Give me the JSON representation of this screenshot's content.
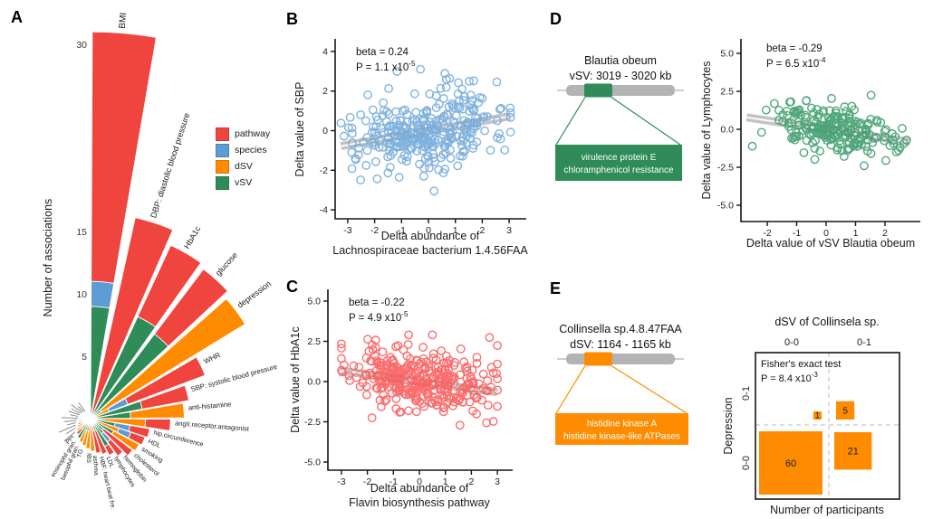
{
  "figure": {
    "panel_labels": {
      "a": "A",
      "b": "B",
      "c": "C",
      "d": "D",
      "e": "E"
    },
    "colors": {
      "pathway": "#F0453F",
      "species": "#5C9BD4",
      "dSV": "#FF8C00",
      "vSV": "#2F8B58",
      "scatter_b_point": "#74AADB",
      "scatter_c_point": "#FA5E5E",
      "scatter_d_point": "#3F9E6E",
      "trend_band": "#B9B9B9",
      "trend_line": "#FFFFFF",
      "axis": "#141414",
      "dashed_grid": "#C9C9C9"
    }
  },
  "chart_data": [
    {
      "id": "A",
      "type": "bar",
      "subtype": "polar-fan-stacked",
      "ylabel": "Number of associations",
      "radial_ticks": [
        [
          5,
          "5"
        ],
        [
          10,
          "10"
        ],
        [
          15,
          "15"
        ],
        [
          30,
          "30"
        ]
      ],
      "legend": {
        "position": "right",
        "entries": [
          {
            "label": "pathway",
            "color": "#F0453F"
          },
          {
            "label": "species",
            "color": "#5C9BD4"
          },
          {
            "label": "dSV",
            "color": "#FF8C00"
          },
          {
            "label": "vSV",
            "color": "#2F8B58"
          }
        ]
      },
      "bars": [
        {
          "label": "BMI",
          "segments": [
            [
              "vSV",
              9
            ],
            [
              "species",
              2
            ],
            [
              "pathway",
              20
            ]
          ]
        },
        {
          "label": "DBP: diastolic blood pressure",
          "segments": [
            [
              "pathway",
              16.5
            ]
          ]
        },
        {
          "label": "HbA1c",
          "segments": [
            [
              "vSV",
              9
            ],
            [
              "pathway",
              6.3
            ]
          ]
        },
        {
          "label": "glucose",
          "segments": [
            [
              "vSV",
              8.5
            ],
            [
              "pathway",
              6.5
            ]
          ]
        },
        {
          "label": "depression",
          "segments": [
            [
              "vSV",
              1
            ],
            [
              "dSV",
              13.5
            ]
          ]
        },
        {
          "label": "WHR",
          "segments": [
            [
              "dSV",
              1.6
            ],
            [
              "species",
              1.6
            ],
            [
              "pathway",
              6.6
            ]
          ]
        },
        {
          "label": "SBP: systolic blood pressure",
          "segments": [
            [
              "vSV",
              4.2
            ],
            [
              "pathway",
              3.8
            ]
          ]
        },
        {
          "label": "anti-histamine",
          "segments": [
            [
              "vSV",
              3.2
            ],
            [
              "dSV",
              4.3
            ]
          ]
        },
        {
          "label": "angII.receptor.antagonist",
          "segments": [
            [
              "dSV",
              4.4
            ],
            [
              "pathway",
              2.0
            ]
          ]
        },
        {
          "label": "hip.circumference",
          "segments": [
            [
              "vSV",
              2.0
            ],
            [
              "species",
              1.2
            ],
            [
              "pathway",
              1.6
            ]
          ]
        },
        {
          "label": "HDL",
          "segments": [
            [
              "dSV",
              2.4
            ],
            [
              "species",
              1.0
            ],
            [
              "pathway",
              1.2
            ]
          ]
        },
        {
          "label": "smoking",
          "segments": [
            [
              "vSV",
              2.1
            ],
            [
              "dSV",
              2.3
            ]
          ]
        },
        {
          "label": "cholesterol",
          "segments": [
            [
              "vSV",
              1.3
            ],
            [
              "pathway",
              2.9
            ]
          ]
        },
        {
          "label": "hemoglobin",
          "segments": [
            [
              "vSV",
              1.5
            ],
            [
              "species",
              0.8
            ],
            [
              "pathway",
              1.4
            ]
          ]
        },
        {
          "label": "lymphocytes",
          "segments": [
            [
              "vSV",
              2.5
            ],
            [
              "pathway",
              0.8
            ]
          ]
        },
        {
          "label": "LDL",
          "segments": [
            [
              "vSV",
              1.0
            ],
            [
              "pathway",
              2.0
            ]
          ]
        },
        {
          "label": "HBF: heart beat fre.",
          "segments": [
            [
              "dSV",
              1.0
            ],
            [
              "pathway",
              1.8
            ]
          ]
        },
        {
          "label": "asthma",
          "segments": [
            [
              "dSV",
              2.6
            ]
          ]
        },
        {
          "label": "IBS",
          "segments": [
            [
              "dSV",
              2.4
            ]
          ]
        },
        {
          "label": "TG",
          "segments": [
            [
              "vSV",
              1.0
            ],
            [
              "dSV",
              1.2
            ]
          ]
        },
        {
          "label": "basophil gran.",
          "segments": [
            [
              "vSV",
              1.0
            ],
            [
              "dSV",
              1.0
            ]
          ]
        },
        {
          "label": "eosinophil gran.",
          "segments": [
            [
              "vSV",
              1.8
            ]
          ]
        },
        {
          "label": "PPI",
          "segments": [
            [
              "dSV",
              1.1
            ],
            [
              "pathway",
              0.5
            ]
          ]
        }
      ],
      "micro_bars": {
        "note": "additional very small bars whose labels are illegible in the source image",
        "values": [
          1.4,
          1.2,
          1.1,
          1.0,
          0.9,
          0.8,
          0.8,
          0.7,
          0.7,
          0.6,
          0.6,
          0.5
        ],
        "segment_types": [
          "dSV",
          "pathway",
          "vSV",
          "dSV",
          "pathway",
          "dSV",
          "vSV",
          "pathway",
          "dSV",
          "species",
          "pathway",
          "dSV"
        ]
      }
    },
    {
      "id": "B",
      "type": "scatter",
      "stats": {
        "beta_label": "beta = 0.24",
        "p_base": "P = 1.1 x10",
        "p_exp": "-5"
      },
      "beta": 0.24,
      "n_points_approx": 310,
      "point_color": "#74AADB",
      "ylabel": "Delta value of SBP",
      "xlabel_lines": [
        "Delta abundance of",
        "Lachnospiraceae bacterium 1.4.56FAA"
      ],
      "xticks": [
        [
          -3,
          "-3"
        ],
        [
          -2,
          "-2"
        ],
        [
          -1,
          "-1"
        ],
        [
          0,
          "0"
        ],
        [
          1,
          "1"
        ],
        [
          2,
          "2"
        ],
        [
          3,
          "3"
        ]
      ],
      "yticks": [
        [
          4,
          "4"
        ],
        [
          2,
          "2"
        ],
        [
          0,
          "0"
        ],
        [
          -2,
          "-2"
        ],
        [
          -4,
          "-4"
        ]
      ],
      "xlim": [
        -3.4,
        3.5
      ],
      "ylim": [
        -4.5,
        4.6
      ]
    },
    {
      "id": "C",
      "type": "scatter",
      "stats": {
        "beta_label": "beta = -0.22",
        "p_base": "P = 4.9 x10",
        "p_exp": "-5"
      },
      "beta": -0.22,
      "n_points_approx": 335,
      "point_color": "#FA5E5E",
      "ylabel": "Delta value of HbA1c",
      "xlabel_lines": [
        "Delta abundance of",
        "Flavin biosynthesis pathway"
      ],
      "xticks": [
        [
          -3,
          "-3"
        ],
        [
          -2,
          "-2"
        ],
        [
          -1,
          "-1"
        ],
        [
          0,
          "0"
        ],
        [
          1,
          "1"
        ],
        [
          2,
          "2"
        ],
        [
          3,
          "3"
        ]
      ],
      "yticks": [
        [
          5,
          "5.0"
        ],
        [
          2.5,
          "2.5"
        ],
        [
          0,
          "0.0"
        ],
        [
          -2.5,
          "-2.5"
        ],
        [
          -5,
          "-5.0"
        ]
      ],
      "xlim": [
        -3.5,
        3.5
      ],
      "ylim": [
        -5.6,
        5.6
      ]
    },
    {
      "id": "D-diagram",
      "type": "genome-diagram",
      "title_lines": [
        "Blautia obeum",
        "vSV: 3019 - 3020 kb"
      ],
      "box_lines": [
        "virulence protein E",
        "chloramphenicol resistance"
      ],
      "color": "#2F8B58"
    },
    {
      "id": "D",
      "type": "scatter",
      "stats": {
        "beta_label": "beta = -0.29",
        "p_base": "P = 6.5 x10",
        "p_exp": "-4"
      },
      "beta": -0.29,
      "n_points_approx": 205,
      "point_color": "#3F9E6E",
      "ylabel": "Delta value of Lymphocytes",
      "xlabel_lines": [
        "Delta value of vSV Blautia obeum"
      ],
      "xticks": [
        [
          -2,
          "-2"
        ],
        [
          -1,
          "-1"
        ],
        [
          0,
          "0"
        ],
        [
          1,
          "1"
        ],
        [
          2,
          "2"
        ]
      ],
      "yticks": [
        [
          5,
          "5.0"
        ],
        [
          2.5,
          "2.5"
        ],
        [
          0,
          "0.0"
        ],
        [
          -2.5,
          "-2.5"
        ],
        [
          -5,
          "-5.0"
        ]
      ],
      "xlim": [
        -2.9,
        3.2
      ],
      "ylim": [
        -5.9,
        5.9
      ]
    },
    {
      "id": "E-diagram",
      "type": "genome-diagram",
      "title_lines": [
        "Collinsella sp.4.8.47FAA",
        "dSV: 1164 - 1165 kb"
      ],
      "box_lines": [
        "histidine kinase A",
        "histidine kinase-like ATPases"
      ],
      "color": "#FF8C00"
    },
    {
      "id": "E",
      "type": "mosaic",
      "title": "dSV of Collinsela sp.",
      "col_labels": [
        "0-0",
        "0-1"
      ],
      "row_labels": [
        "0-1",
        "0-0"
      ],
      "ylabel": "Depression",
      "xlabel": "Number of participants",
      "stats_line": "Fisher's exact test",
      "p_base": "P = 8.4 x10",
      "p_exp": "-3",
      "counts": {
        "top_row_0-1": [
          1,
          5
        ],
        "bottom_row_0-0": [
          60,
          21
        ]
      },
      "square_color": "#FF8C00"
    }
  ]
}
